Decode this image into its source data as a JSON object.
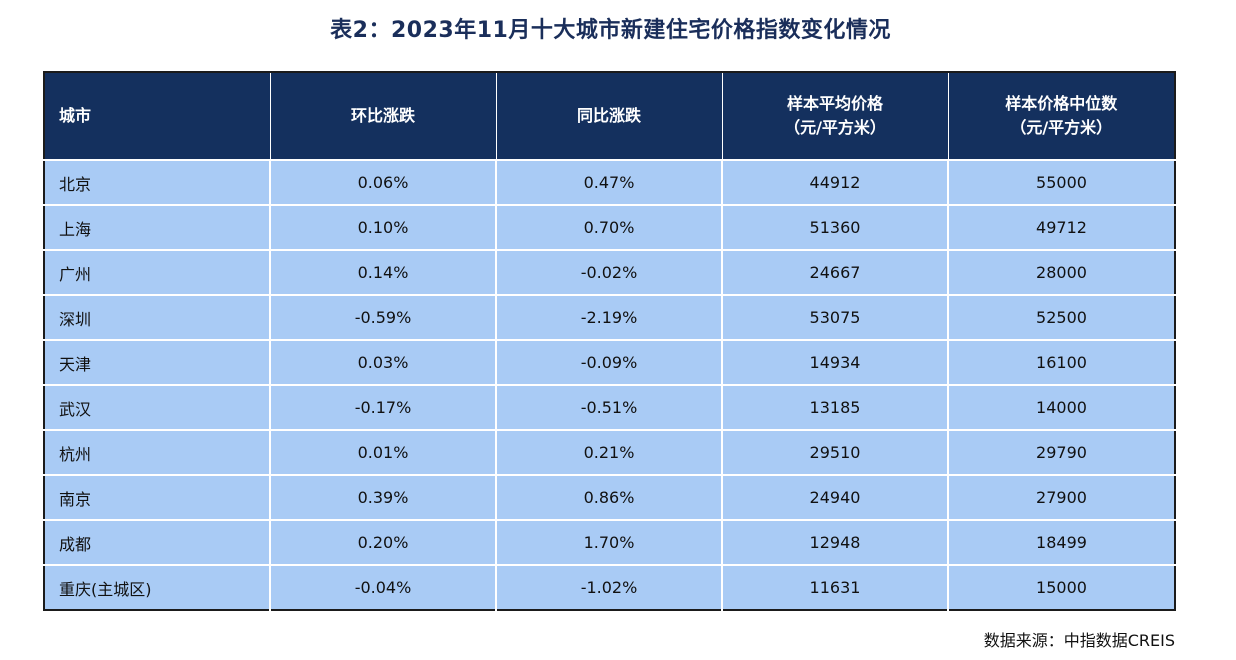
{
  "title": "表2：2023年11月十大城市新建住宅价格指数变化情况",
  "table": {
    "headers": [
      {
        "line1": "城市",
        "line2": ""
      },
      {
        "line1": "环比涨跌",
        "line2": ""
      },
      {
        "line1": "同比涨跌",
        "line2": ""
      },
      {
        "line1": "样本平均价格",
        "line2": "（元/平方米）"
      },
      {
        "line1": "样本价格中位数",
        "line2": "（元/平方米）"
      }
    ],
    "rows": [
      [
        "北京",
        "0.06%",
        "0.47%",
        "44912",
        "55000"
      ],
      [
        "上海",
        "0.10%",
        "0.70%",
        "51360",
        "49712"
      ],
      [
        "广州",
        "0.14%",
        "-0.02%",
        "24667",
        "28000"
      ],
      [
        "深圳",
        "-0.59%",
        "-2.19%",
        "53075",
        "52500"
      ],
      [
        "天津",
        "0.03%",
        "-0.09%",
        "14934",
        "16100"
      ],
      [
        "武汉",
        "-0.17%",
        "-0.51%",
        "13185",
        "14000"
      ],
      [
        "杭州",
        "0.01%",
        "0.21%",
        "29510",
        "29790"
      ],
      [
        "南京",
        "0.39%",
        "0.86%",
        "24940",
        "27900"
      ],
      [
        "成都",
        "0.20%",
        "1.70%",
        "12948",
        "18499"
      ],
      [
        "重庆(主城区)",
        "-0.04%",
        "-1.02%",
        "11631",
        "15000"
      ]
    ]
  },
  "source": "数据来源：中指数据CREIS",
  "colors": {
    "header_bg": "#14305e",
    "cell_bg": "#a9cbf5",
    "title": "#1a2e5a"
  }
}
